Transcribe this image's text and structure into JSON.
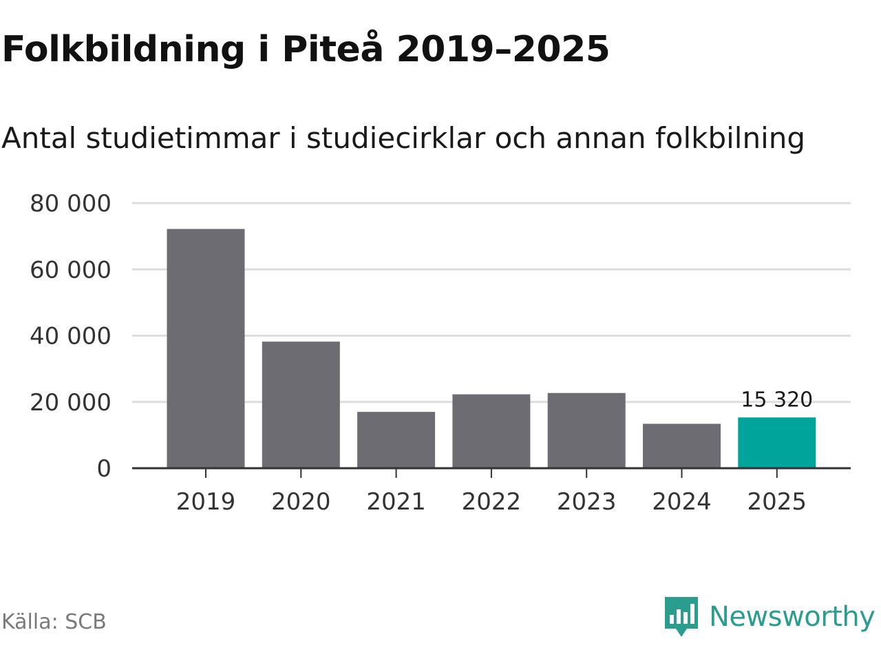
{
  "title": "Folkbildning i Piteå 2019–2025",
  "subtitle": "Antal studietimmar i studiecirklar och annan folkbilning",
  "source": "Källa: SCB",
  "brand": {
    "name": "Newsworthy",
    "icon": "newsworthy-logo-icon"
  },
  "colors": {
    "bar": "#6d6c72",
    "highlight": "#00a49a",
    "grid": "#dedede",
    "axis": "#333333",
    "brand": "#2a9d8f"
  },
  "chart_data": {
    "type": "bar",
    "title": "Folkbildning i Piteå 2019–2025",
    "subtitle": "Antal studietimmar i studiecirklar och annan folkbilning",
    "xlabel": "",
    "ylabel": "",
    "categories": [
      "2019",
      "2020",
      "2021",
      "2022",
      "2023",
      "2024",
      "2025"
    ],
    "values": [
      72200,
      38200,
      17000,
      22300,
      22700,
      13400,
      15320
    ],
    "highlight_index": 6,
    "annotation": {
      "index": 6,
      "text": "15 320"
    },
    "ylim": [
      0,
      80000
    ],
    "yticks": [
      0,
      20000,
      40000,
      60000,
      80000
    ],
    "ytick_labels": [
      "0",
      "20 000",
      "40 000",
      "60 000",
      "80 000"
    ],
    "grid": true,
    "legend": "none"
  }
}
